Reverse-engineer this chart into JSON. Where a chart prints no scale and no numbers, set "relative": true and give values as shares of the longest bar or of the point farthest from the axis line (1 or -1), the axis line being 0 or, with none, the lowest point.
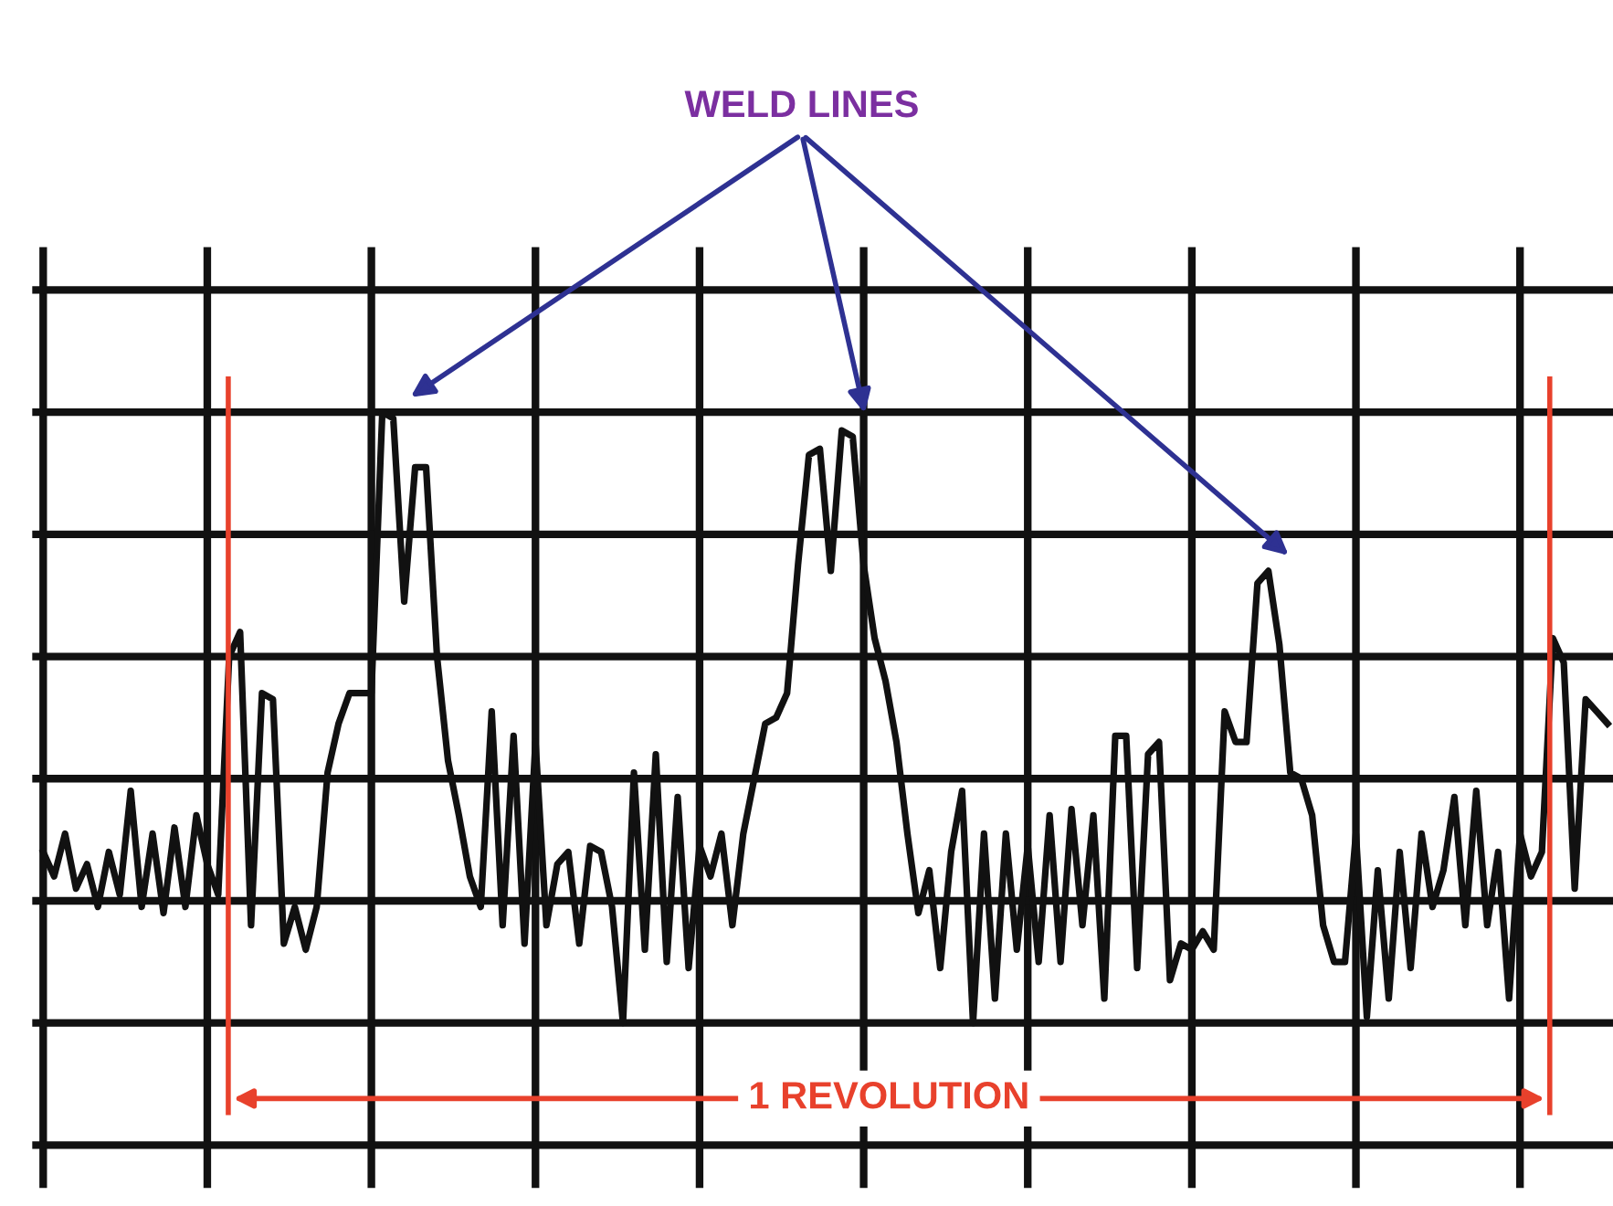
{
  "chart_data": {
    "type": "line",
    "relative": true,
    "categories": [
      null,
      null,
      null,
      null,
      null,
      null,
      null,
      null,
      null,
      null,
      null,
      null,
      null,
      null,
      null,
      null,
      null,
      null,
      null,
      null,
      null,
      null,
      null,
      null,
      null,
      null,
      null,
      null,
      null,
      null,
      null,
      null,
      null,
      null,
      null,
      null,
      null,
      null,
      null,
      null,
      null,
      null,
      null,
      null,
      null,
      null,
      null,
      null,
      null,
      null,
      null,
      null,
      null,
      null,
      null,
      null,
      null,
      null,
      null,
      null,
      null,
      null,
      null,
      null,
      null,
      null,
      null,
      null,
      null,
      null,
      null,
      null,
      null,
      null,
      null,
      null,
      null,
      null,
      null,
      null,
      null,
      null,
      null,
      null,
      null,
      null,
      null,
      null,
      null,
      null,
      null,
      null,
      null,
      null,
      null,
      null,
      null,
      null,
      null,
      null,
      null,
      null,
      null,
      null,
      null,
      null,
      null,
      null,
      null,
      null,
      null,
      null,
      null,
      null,
      null,
      null,
      null,
      null,
      null,
      null,
      null,
      null,
      null,
      null,
      null,
      null,
      null,
      null,
      null,
      null,
      null,
      null,
      null,
      null,
      null,
      null,
      null,
      null,
      null,
      null,
      null,
      null,
      null,
      null
    ],
    "series": [
      {
        "color": "#111111",
        "values": [
          0.28,
          0.24,
          0.31,
          0.22,
          0.26,
          0.19,
          0.28,
          0.21,
          0.38,
          0.19,
          0.31,
          0.18,
          0.32,
          0.19,
          0.34,
          0.26,
          0.21,
          0.6,
          0.64,
          0.16,
          0.54,
          0.53,
          0.13,
          0.19,
          0.12,
          0.19,
          0.41,
          0.49,
          0.54,
          0.54,
          0.54,
          1.0,
          0.99,
          0.69,
          0.91,
          0.91,
          0.6,
          0.43,
          0.34,
          0.24,
          0.19,
          0.51,
          0.16,
          0.47,
          0.13,
          0.46,
          0.16,
          0.26,
          0.28,
          0.13,
          0.29,
          0.28,
          0.19,
          0,
          0.41,
          0.12,
          0.44,
          0.1,
          0.37,
          0.09,
          0.29,
          0.24,
          0.31,
          0.16,
          0.31,
          0.4,
          0.49,
          0.5,
          0.54,
          0.75,
          0.93,
          0.94,
          0.74,
          0.97,
          0.96,
          0.75,
          0.63,
          0.56,
          0.46,
          0.31,
          0.18,
          0.25,
          0.09,
          0.28,
          0.38,
          0,
          0.31,
          0.04,
          0.31,
          0.12,
          0.29,
          0.1,
          0.34,
          0.1,
          0.35,
          0.16,
          0.34,
          0.04,
          0.47,
          0.47,
          0.09,
          0.44,
          0.46,
          0.07,
          0.13,
          0.12,
          0.15,
          0.12,
          0.51,
          0.46,
          0.46,
          0.72,
          0.74,
          0.62,
          0.41,
          0.4,
          0.34,
          0.16,
          0.1,
          0.1,
          0.31,
          0.01,
          0.25,
          0.04,
          0.28,
          0.09,
          0.31,
          0.19,
          0.25,
          0.37,
          0.16,
          0.38,
          0.16,
          0.28,
          0.04,
          0.31,
          0.24,
          0.28,
          0.63,
          0.59,
          0.22,
          0.53,
          0.51,
          0.49
        ]
      }
    ],
    "annotations": [
      "WELD LINES",
      "1 REVOLUTION"
    ],
    "grid": true,
    "tick_labels": false,
    "legend": false,
    "marker": "none",
    "line_style": "solid"
  }
}
